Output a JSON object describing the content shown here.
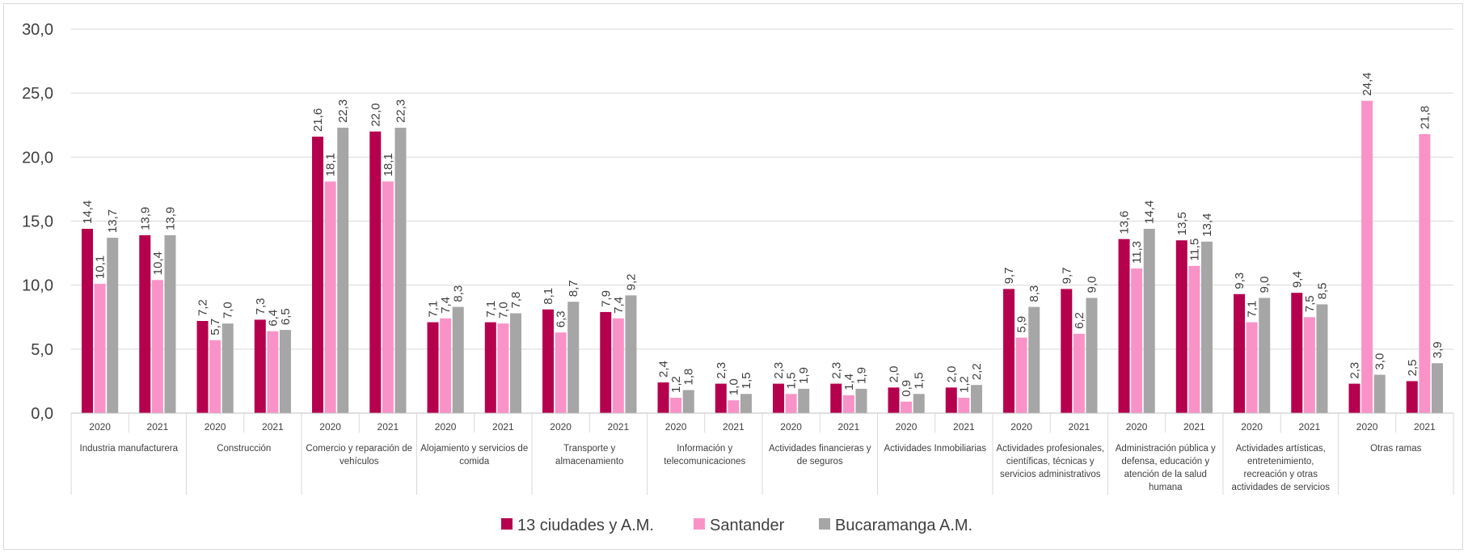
{
  "chart_data": {
    "type": "bar",
    "ylim": [
      0,
      30
    ],
    "y_ticks": [
      "0,0",
      "5,0",
      "10,0",
      "15,0",
      "20,0",
      "25,0",
      "30,0"
    ],
    "grid": true,
    "legend_position": "bottom",
    "groups": [
      {
        "name": "Industria manufacturera",
        "lines": [
          "Industria manufacturera"
        ],
        "years": [
          "2020",
          "2021"
        ]
      },
      {
        "name": "Construcción",
        "lines": [
          "Construcción"
        ],
        "years": [
          "2020",
          "2021"
        ]
      },
      {
        "name": "Comercio y reparación de vehículos",
        "lines": [
          "Comercio y reparación de",
          "vehículos"
        ],
        "years": [
          "2020",
          "2021"
        ]
      },
      {
        "name": "Alojamiento y servicios de comida",
        "lines": [
          "Alojamiento y servicios de",
          "comida"
        ],
        "years": [
          "2020",
          "2021"
        ]
      },
      {
        "name": "Transporte y almacenamiento",
        "lines": [
          "Transporte y",
          "almacenamiento"
        ],
        "years": [
          "2020",
          "2021"
        ]
      },
      {
        "name": "Información y telecomunicaciones",
        "lines": [
          "Información y",
          "telecomunicaciones"
        ],
        "years": [
          "2020",
          "2021"
        ]
      },
      {
        "name": "Actividades financieras y de seguros",
        "lines": [
          "Actividades financieras y",
          "de seguros"
        ],
        "years": [
          "2020",
          "2021"
        ]
      },
      {
        "name": "Actividades Inmobiliarias",
        "lines": [
          "Actividades Inmobiliarias"
        ],
        "years": [
          "2020",
          "2021"
        ]
      },
      {
        "name": "Actividades profesionales, científicas, técnicas y servicios administrativos",
        "lines": [
          "Actividades profesionales,",
          "científicas, técnicas y",
          "servicios administrativos"
        ],
        "years": [
          "2020",
          "2021"
        ]
      },
      {
        "name": "Administración pública y defensa, educación y atención de la salud humana",
        "lines": [
          "Administración pública y",
          "defensa, educación y",
          "atención de la salud",
          "humana"
        ],
        "years": [
          "2020",
          "2021"
        ]
      },
      {
        "name": "Actividades artísticas, entretenimiento, recreación y otras actividades de servicios",
        "lines": [
          "Actividades artísticas,",
          "entretenimiento,",
          "recreación y otras",
          "actividades de servicios"
        ],
        "years": [
          "2020",
          "2021"
        ]
      },
      {
        "name": "Otras ramas",
        "lines": [
          "Otras ramas"
        ],
        "years": [
          "2020",
          "2021"
        ]
      }
    ],
    "series": [
      {
        "name": "13 ciudades y A.M.",
        "color": "#b5004d",
        "values": [
          14.4,
          13.9,
          7.2,
          7.3,
          21.6,
          22.0,
          7.1,
          7.1,
          8.1,
          7.9,
          2.4,
          2.3,
          2.3,
          2.3,
          2.0,
          2.0,
          9.7,
          9.7,
          13.6,
          13.5,
          9.3,
          9.4,
          2.3,
          2.5
        ],
        "labels": [
          "14,4",
          "13,9",
          "7,2",
          "7,3",
          "21,6",
          "22,0",
          "7,1",
          "7,1",
          "8,1",
          "7,9",
          "2,4",
          "2,3",
          "2,3",
          "2,3",
          "2,0",
          "2,0",
          "9,7",
          "9,7",
          "13,6",
          "13,5",
          "9,3",
          "9,4",
          "2,3",
          "2,5"
        ]
      },
      {
        "name": "Santander",
        "color": "#f993c7",
        "values": [
          10.1,
          10.4,
          5.7,
          6.4,
          18.1,
          18.1,
          7.4,
          7.0,
          6.3,
          7.4,
          1.2,
          1.0,
          1.5,
          1.4,
          0.9,
          1.2,
          5.9,
          6.2,
          11.3,
          11.5,
          7.1,
          7.5,
          24.4,
          21.8
        ],
        "labels": [
          "10,1",
          "10,4",
          "5,7",
          "6,4",
          "18,1",
          "18,1",
          "7,4",
          "7,0",
          "6,3",
          "7,4",
          "1,2",
          "1,0",
          "1,5",
          "1,4",
          "0,9",
          "1,2",
          "5,9",
          "6,2",
          "11,3",
          "11,5",
          "7,1",
          "7,5",
          "24,4",
          "21,8"
        ]
      },
      {
        "name": "Bucaramanga A.M.",
        "color": "#a6a6a6",
        "values": [
          13.7,
          13.9,
          7.0,
          6.5,
          22.3,
          22.3,
          8.3,
          7.8,
          8.7,
          9.2,
          1.8,
          1.5,
          1.9,
          1.9,
          1.5,
          2.2,
          8.3,
          9.0,
          14.4,
          13.4,
          9.0,
          8.5,
          3.0,
          3.9
        ],
        "labels": [
          "13,7",
          "13,9",
          "7,0",
          "6,5",
          "22,3",
          "22,3",
          "8,3",
          "7,8",
          "8,7",
          "9,2",
          "1,8",
          "1,5",
          "1,9",
          "1,9",
          "1,5",
          "2,2",
          "8,3",
          "9,0",
          "14,4",
          "13,4",
          "9,0",
          "8,5",
          "3,0",
          "3,9"
        ]
      }
    ]
  }
}
